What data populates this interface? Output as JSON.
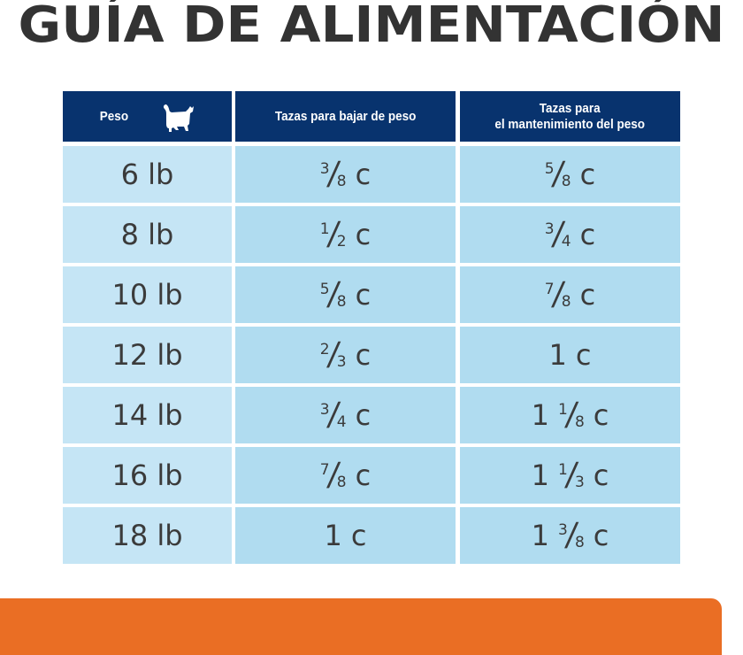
{
  "title": "GUÍA DE ALIMENTACIÓN",
  "colors": {
    "header_bg": "#08336e",
    "header_text": "#ffffff",
    "weight_cell_bg": "#c5e5f5",
    "amount_cell_bg": "#b0dcf0",
    "cell_text": "#3b3b3b",
    "title_text": "#333333",
    "footer_bar": "#ea6e24"
  },
  "table": {
    "headers": {
      "weight": "Peso",
      "weight_icon": "cat-icon",
      "weight_loss": "Tazas para bajar de peso",
      "maintenance_line1": "Tazas para",
      "maintenance_line2": "el mantenimiento del peso"
    },
    "rows": [
      {
        "weight": "6 lb",
        "loss": {
          "whole": "",
          "num": "3",
          "den": "8",
          "unit": "c"
        },
        "maint": {
          "whole": "",
          "num": "5",
          "den": "8",
          "unit": "c"
        }
      },
      {
        "weight": "8 lb",
        "loss": {
          "whole": "",
          "num": "1",
          "den": "2",
          "unit": "c"
        },
        "maint": {
          "whole": "",
          "num": "3",
          "den": "4",
          "unit": "c"
        }
      },
      {
        "weight": "10 lb",
        "loss": {
          "whole": "",
          "num": "5",
          "den": "8",
          "unit": "c"
        },
        "maint": {
          "whole": "",
          "num": "7",
          "den": "8",
          "unit": "c"
        }
      },
      {
        "weight": "12 lb",
        "loss": {
          "whole": "",
          "num": "2",
          "den": "3",
          "unit": "c"
        },
        "maint": {
          "whole": "1",
          "num": "",
          "den": "",
          "unit": "c"
        }
      },
      {
        "weight": "14 lb",
        "loss": {
          "whole": "",
          "num": "3",
          "den": "4",
          "unit": "c"
        },
        "maint": {
          "whole": "1",
          "num": "1",
          "den": "8",
          "unit": "c"
        }
      },
      {
        "weight": "16 lb",
        "loss": {
          "whole": "",
          "num": "7",
          "den": "8",
          "unit": "c"
        },
        "maint": {
          "whole": "1",
          "num": "1",
          "den": "3",
          "unit": "c"
        }
      },
      {
        "weight": "18 lb",
        "loss": {
          "whole": "1",
          "num": "",
          "den": "",
          "unit": "c"
        },
        "maint": {
          "whole": "1",
          "num": "3",
          "den": "8",
          "unit": "c"
        }
      }
    ]
  }
}
